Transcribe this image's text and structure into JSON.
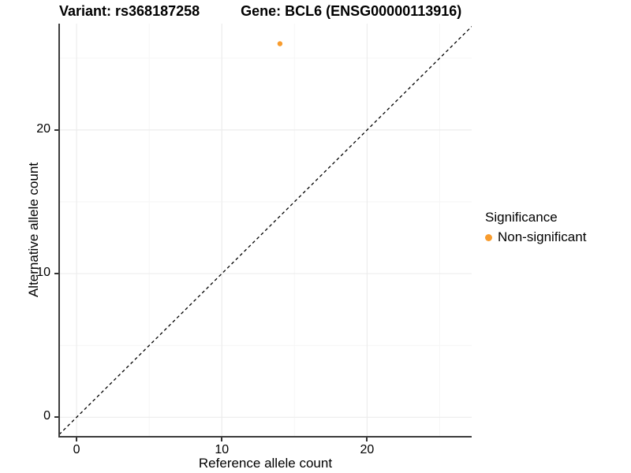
{
  "titles": {
    "left": "Variant: rs368187258",
    "right": "Gene: BCL6 (ENSG00000113916)"
  },
  "chart_data": {
    "type": "scatter",
    "title": "Variant: rs368187258   Gene: BCL6 (ENSG00000113916)",
    "xlabel": "Reference allele count",
    "ylabel": "Alternative allele count",
    "xlim": [
      -1.2,
      27.2
    ],
    "ylim": [
      -1.3,
      27.4
    ],
    "x_ticks": [
      0,
      10,
      20
    ],
    "y_ticks": [
      0,
      10,
      20
    ],
    "x_minor_ticks": [
      5,
      15,
      25
    ],
    "y_minor_ticks": [
      5,
      15,
      25
    ],
    "grid": {
      "show": true,
      "major_color": "#ececec",
      "minor_color": "#f6f6f6"
    },
    "series": [
      {
        "name": "Non-significant",
        "color": "#F89C2E",
        "points": [
          {
            "x": 14,
            "y": 26
          }
        ],
        "point_radius_px": 3.2
      }
    ],
    "reference_line": {
      "equation": "y = x",
      "style": "dashed",
      "color": "#000000"
    },
    "legend": {
      "title": "Significance",
      "position": "right",
      "items": [
        {
          "label": "Non-significant",
          "color": "#F89C2E"
        }
      ]
    }
  }
}
